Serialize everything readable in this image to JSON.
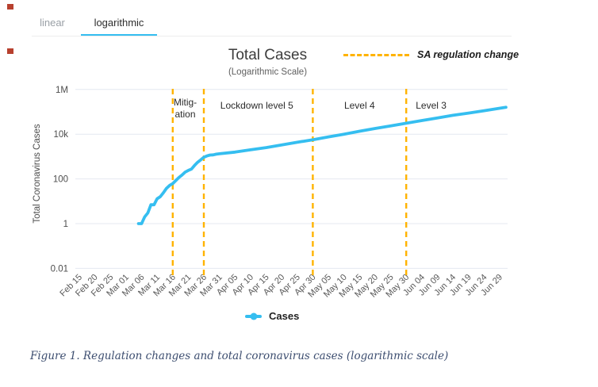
{
  "theme": {
    "accent_blue": "#35bef0",
    "annotation_orange": "#ffb300",
    "grid_color": "#e4e8f1",
    "caption_color": "#3d4e70",
    "marker_red": "#b7402e",
    "tab_inactive": "#9aa0a6"
  },
  "tabs": {
    "items": [
      {
        "label": "linear",
        "active": false
      },
      {
        "label": "logarithmic",
        "active": true
      }
    ]
  },
  "chart_data": {
    "type": "line",
    "title": "Total Cases",
    "subtitle": "(Logarithmic Scale)",
    "xlabel": "",
    "ylabel": "Total Coronavirus Cases",
    "y_scale": "log",
    "ylim": [
      0.01,
      1000000
    ],
    "grid": "horizontal",
    "legend_position": "bottom",
    "y_ticks": [
      {
        "value": 1000000,
        "label": "1M"
      },
      {
        "value": 10000,
        "label": "10k"
      },
      {
        "value": 100,
        "label": "100"
      },
      {
        "value": 1,
        "label": "1"
      },
      {
        "value": 0.01,
        "label": "0.01"
      }
    ],
    "x_tick_labels": [
      "Feb 15",
      "Feb 20",
      "Feb 25",
      "Mar 01",
      "Mar 06",
      "Mar 11",
      "Mar 16",
      "Mar 21",
      "Mar 26",
      "Mar 31",
      "Apr 05",
      "Apr 10",
      "Apr 15",
      "Apr 20",
      "Apr 25",
      "Apr 30",
      "May 05",
      "May 10",
      "May 15",
      "May 20",
      "May 25",
      "May 30",
      "Jun 04",
      "Jun 09",
      "Jun 14",
      "Jun 19",
      "Jun 24",
      "Jun 29"
    ],
    "series": [
      {
        "name": "Cases",
        "color": "#35bef0",
        "points": [
          [
            "Mar 05",
            1
          ],
          [
            "Mar 06",
            1
          ],
          [
            "Mar 07",
            2
          ],
          [
            "Mar 08",
            3
          ],
          [
            "Mar 09",
            7
          ],
          [
            "Mar 10",
            7
          ],
          [
            "Mar 11",
            13
          ],
          [
            "Mar 12",
            16
          ],
          [
            "Mar 13",
            24
          ],
          [
            "Mar 14",
            38
          ],
          [
            "Mar 15",
            51
          ],
          [
            "Mar 16",
            62
          ],
          [
            "Mar 17",
            85
          ],
          [
            "Mar 18",
            116
          ],
          [
            "Mar 19",
            150
          ],
          [
            "Mar 20",
            202
          ],
          [
            "Mar 21",
            240
          ],
          [
            "Mar 22",
            274
          ],
          [
            "Mar 23",
            402
          ],
          [
            "Mar 24",
            554
          ],
          [
            "Mar 25",
            709
          ],
          [
            "Mar 26",
            927
          ],
          [
            "Mar 27",
            1070
          ],
          [
            "Mar 28",
            1170
          ],
          [
            "Mar 29",
            1187
          ],
          [
            "Mar 30",
            1280
          ],
          [
            "Mar 31",
            1326
          ],
          [
            "Apr 05",
            1585
          ],
          [
            "Apr 10",
            2003
          ],
          [
            "Apr 15",
            2506
          ],
          [
            "Apr 20",
            3300
          ],
          [
            "Apr 25",
            4361
          ],
          [
            "Apr 30",
            5647
          ],
          [
            "May 05",
            7572
          ],
          [
            "May 10",
            10015
          ],
          [
            "May 15",
            13524
          ],
          [
            "May 20",
            18003
          ],
          [
            "May 25",
            23615
          ],
          [
            "May 30",
            30967
          ],
          [
            "Jun 04",
            40792
          ],
          [
            "Jun 09",
            52991
          ],
          [
            "Jun 14",
            70038
          ],
          [
            "Jun 19",
            87715
          ],
          [
            "Jun 24",
            111796
          ],
          [
            "Jun 29",
            144264
          ],
          [
            "Jul 01",
            159333
          ]
        ]
      }
    ],
    "annotations": {
      "legend_label": "SA regulation change",
      "line_color": "#ffb300",
      "line_style": "dashed",
      "vline_dates": [
        "Mar 16",
        "Mar 26",
        "Apr 30",
        "May 30"
      ],
      "regions": [
        {
          "lines": [
            "Mitig-",
            "ation"
          ],
          "center": "Mar 20"
        },
        {
          "lines": [
            "Lockdown level 5"
          ],
          "center": "Apr 12"
        },
        {
          "lines": [
            "Level 4"
          ],
          "center": "May 15"
        },
        {
          "lines": [
            "Level 3"
          ],
          "center": "Jun 07"
        }
      ]
    }
  },
  "caption": {
    "text": "Figure 1. Regulation changes and total coronavirus cases (logarithmic scale)"
  }
}
